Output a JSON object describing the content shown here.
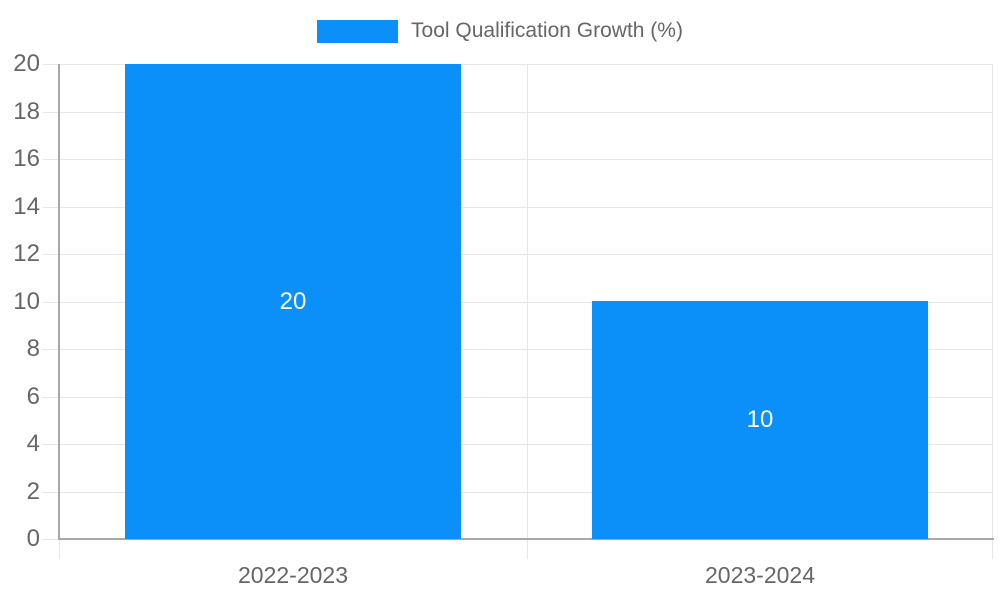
{
  "chart_data": {
    "type": "bar",
    "title": "",
    "legend_label": "Tool Qualification Growth (%)",
    "legend_position": "top",
    "categories": [
      "2022-2023",
      "2023-2024"
    ],
    "series": [
      {
        "name": "Tool Qualification Growth (%)",
        "values": [
          20,
          10
        ]
      }
    ],
    "data_labels": [
      "20",
      "10"
    ],
    "xlabel": "",
    "ylabel": "",
    "ylim": [
      0,
      20
    ],
    "yticks": [
      0,
      2,
      4,
      6,
      8,
      10,
      12,
      14,
      16,
      18,
      20
    ],
    "grid": true,
    "colors": {
      "bar": "#0a90f8",
      "grid": "#e7e7e7",
      "axis": "#a8a8a8",
      "tick_label": "#666666",
      "data_label": "#ffffff",
      "background": "#ffffff"
    }
  }
}
